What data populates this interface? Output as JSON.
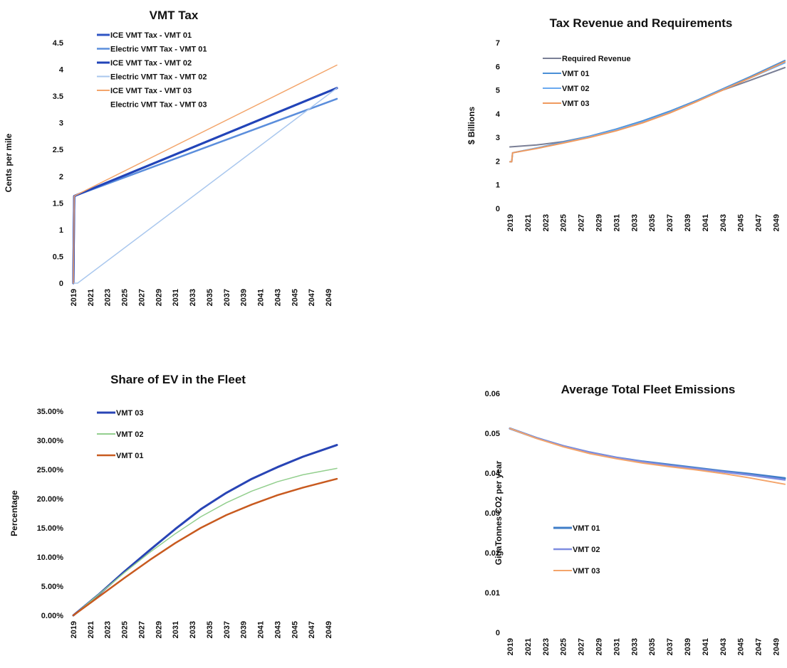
{
  "chart_data": [
    {
      "type": "line",
      "title": "VMT Tax",
      "xlabel": "",
      "ylabel": "Cents per mile",
      "ylim": [
        0,
        4.5
      ],
      "yticks": [
        "0",
        "0.5",
        "1",
        "1.5",
        "2",
        "2.5",
        "3",
        "3.5",
        "4",
        "4.5"
      ],
      "xticks": [
        "2019",
        "2021",
        "2023",
        "2025",
        "2027",
        "2029",
        "2031",
        "2033",
        "2035",
        "2037",
        "2039",
        "2041",
        "2043",
        "2045",
        "2047",
        "2049"
      ],
      "xlim": [
        2019,
        2050
      ],
      "legend_position": "top-left",
      "series": [
        {
          "name": "ICE VMT Tax  - VMT 01",
          "color": "#2f55c4",
          "width": 3,
          "x": [
            2019,
            2019.1,
            2050
          ],
          "y": [
            0,
            1.63,
            3.65
          ]
        },
        {
          "name": "Electric VMT Tax - VMT 01",
          "color": "#5b8edc",
          "width": 2.5,
          "x": [
            2019,
            2019.1,
            2050
          ],
          "y": [
            0,
            1.63,
            3.45
          ]
        },
        {
          "name": "ICE VMT Tax - VMT 02",
          "color": "#2244b8",
          "width": 3,
          "x": [
            2019,
            2019.1,
            2050
          ],
          "y": [
            0,
            1.63,
            3.65
          ]
        },
        {
          "name": "Electric VMT Tax - VMT 02",
          "color": "#a9c7ee",
          "width": 1.5,
          "x": [
            2019,
            2019.5,
            2050
          ],
          "y": [
            0,
            0,
            3.65
          ]
        },
        {
          "name": "ICE VMT Tax  - VMT 03",
          "color": "#f3a56b",
          "width": 1.5,
          "x": [
            2019,
            2019.1,
            2050
          ],
          "y": [
            0,
            1.63,
            4.08
          ]
        },
        {
          "name": "Electric VMT Tax - VMT 03",
          "color": "#ffffff",
          "width": 0,
          "x": [],
          "y": []
        }
      ]
    },
    {
      "type": "line",
      "title": "Tax Revenue and Requirements",
      "xlabel": "",
      "ylabel": "$ Billions",
      "ylim": [
        0,
        7
      ],
      "yticks": [
        "0",
        "1",
        "2",
        "3",
        "4",
        "5",
        "6",
        "7"
      ],
      "xticks": [
        "2019",
        "2021",
        "2023",
        "2025",
        "2027",
        "2029",
        "2031",
        "2033",
        "2035",
        "2037",
        "2039",
        "2041",
        "2043",
        "2045",
        "2047",
        "2049"
      ],
      "xlim": [
        2019,
        2050
      ],
      "legend_position": "top-left",
      "series": [
        {
          "name": "Required Revenue",
          "color": "#7a7f96",
          "width": 2,
          "x": [
            2019,
            2022,
            2025,
            2028,
            2031,
            2034,
            2037,
            2040,
            2043,
            2046,
            2050
          ],
          "y": [
            2.6,
            2.68,
            2.82,
            3.05,
            3.35,
            3.7,
            4.1,
            4.55,
            5.0,
            5.4,
            5.95
          ]
        },
        {
          "name": "VMT 01",
          "color": "#4a8fd6",
          "width": 2,
          "x": [
            2019,
            2019.2,
            2019.3,
            2022,
            2025,
            2028,
            2031,
            2034,
            2037,
            2040,
            2043,
            2046,
            2050
          ],
          "y": [
            1.97,
            1.97,
            2.35,
            2.55,
            2.8,
            3.05,
            3.35,
            3.7,
            4.1,
            4.55,
            5.05,
            5.55,
            6.25
          ]
        },
        {
          "name": "VMT 02",
          "color": "#6aaaf0",
          "width": 2,
          "x": [
            2019,
            2019.2,
            2019.3,
            2022,
            2025,
            2028,
            2031,
            2034,
            2037,
            2040,
            2043,
            2046,
            2050
          ],
          "y": [
            1.97,
            1.97,
            2.35,
            2.55,
            2.78,
            3.03,
            3.32,
            3.66,
            4.06,
            4.52,
            5.02,
            5.5,
            6.15
          ]
        },
        {
          "name": "VMT 03",
          "color": "#f09a5e",
          "width": 2,
          "x": [
            2019,
            2019.2,
            2019.3,
            2022,
            2025,
            2028,
            2031,
            2034,
            2037,
            2040,
            2043,
            2046,
            2050
          ],
          "y": [
            1.97,
            1.97,
            2.35,
            2.53,
            2.76,
            3.0,
            3.28,
            3.62,
            4.03,
            4.5,
            5.0,
            5.5,
            6.2
          ]
        }
      ]
    },
    {
      "type": "line",
      "title": "Share of EV in the Fleet",
      "xlabel": "",
      "ylabel": "Percentage",
      "ylim": [
        0,
        35
      ],
      "yticks": [
        "0.00%",
        "5.00%",
        "10.00%",
        "15.00%",
        "20.00%",
        "25.00%",
        "30.00%",
        "35.00%"
      ],
      "xticks": [
        "2019",
        "2021",
        "2023",
        "2025",
        "2027",
        "2029",
        "2031",
        "2033",
        "2035",
        "2037",
        "2039",
        "2041",
        "2043",
        "2045",
        "2047",
        "2049"
      ],
      "xlim": [
        2019,
        2050
      ],
      "legend_position": "top-left",
      "series": [
        {
          "name": "VMT 03",
          "color": "#2844b5",
          "width": 3,
          "x": [
            2019,
            2022,
            2025,
            2028,
            2031,
            2034,
            2037,
            2040,
            2043,
            2046,
            2050
          ],
          "y": [
            0,
            3.6,
            7.5,
            11.2,
            14.8,
            18.2,
            21.0,
            23.4,
            25.4,
            27.2,
            29.2
          ]
        },
        {
          "name": "VMT 02",
          "color": "#93cf8e",
          "width": 1.5,
          "x": [
            2019,
            2022,
            2025,
            2028,
            2031,
            2034,
            2037,
            2040,
            2043,
            2046,
            2050
          ],
          "y": [
            0,
            3.6,
            7.3,
            10.8,
            14.0,
            16.9,
            19.3,
            21.3,
            22.9,
            24.1,
            25.2
          ]
        },
        {
          "name": "VMT 01",
          "color": "#c85a1f",
          "width": 2.5,
          "x": [
            2019,
            2022,
            2025,
            2028,
            2031,
            2034,
            2037,
            2040,
            2043,
            2046,
            2050
          ],
          "y": [
            0,
            3.2,
            6.4,
            9.5,
            12.4,
            15.0,
            17.2,
            19.0,
            20.6,
            21.9,
            23.4
          ]
        }
      ]
    },
    {
      "type": "line",
      "title": "Average Total Fleet Emissions",
      "xlabel": "",
      "ylabel": "GigaTonnes CO2 per year",
      "ylim": [
        0,
        0.06
      ],
      "yticks": [
        "0",
        "0.01",
        "0.02",
        "0.03",
        "0.04",
        "0.05",
        "0.06"
      ],
      "xticks": [
        "2019",
        "2021",
        "2023",
        "2025",
        "2027",
        "2029",
        "2031",
        "2033",
        "2035",
        "2037",
        "2039",
        "2041",
        "2043",
        "2045",
        "2047",
        "2049"
      ],
      "xlim": [
        2019,
        2050
      ],
      "legend_position": "center-left",
      "series": [
        {
          "name": "VMT 01",
          "color": "#3f7dc8",
          "width": 3,
          "x": [
            2019,
            2022,
            2025,
            2028,
            2031,
            2034,
            2037,
            2040,
            2043,
            2046,
            2050
          ],
          "y": [
            0.0512,
            0.0488,
            0.0468,
            0.0452,
            0.0439,
            0.0429,
            0.0421,
            0.0413,
            0.0405,
            0.0398,
            0.0387
          ]
        },
        {
          "name": "VMT 02",
          "color": "#7f8de0",
          "width": 2.5,
          "x": [
            2019,
            2022,
            2025,
            2028,
            2031,
            2034,
            2037,
            2040,
            2043,
            2046,
            2050
          ],
          "y": [
            0.0512,
            0.0488,
            0.0468,
            0.0452,
            0.0439,
            0.0428,
            0.0419,
            0.0411,
            0.0403,
            0.0395,
            0.0383
          ]
        },
        {
          "name": "VMT 03",
          "color": "#f4a46a",
          "width": 2,
          "x": [
            2019,
            2022,
            2025,
            2028,
            2031,
            2034,
            2037,
            2040,
            2043,
            2046,
            2050
          ],
          "y": [
            0.0512,
            0.0487,
            0.0466,
            0.0449,
            0.0436,
            0.0425,
            0.0416,
            0.0408,
            0.0399,
            0.0388,
            0.0372
          ]
        }
      ]
    }
  ]
}
